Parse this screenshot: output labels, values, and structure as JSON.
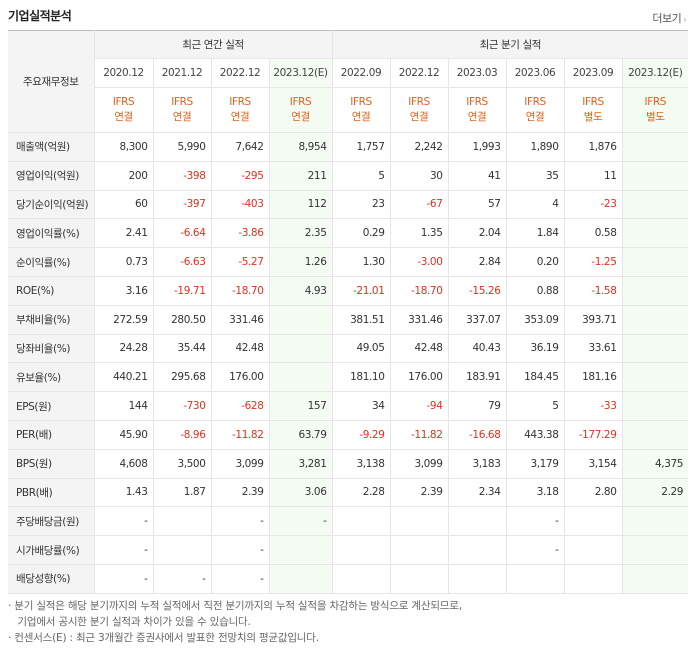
{
  "title": "기업실적분석",
  "more_label": "더보기",
  "more_arrow": "›",
  "corner_label": "주요재무정보",
  "group_annual": "최근 연간 실적",
  "group_quarter": "최근 분기 실적",
  "periods": [
    "2020.12",
    "2021.12",
    "2022.12",
    "2023.12(E)",
    "2022.09",
    "2022.12",
    "2023.03",
    "2023.06",
    "2023.09",
    "2023.12(E)"
  ],
  "standards": [
    [
      "IFRS",
      "연결"
    ],
    [
      "IFRS",
      "연결"
    ],
    [
      "IFRS",
      "연결"
    ],
    [
      "IFRS",
      "연결"
    ],
    [
      "IFRS",
      "연결"
    ],
    [
      "IFRS",
      "연결"
    ],
    [
      "IFRS",
      "연결"
    ],
    [
      "IFRS",
      "연결"
    ],
    [
      "IFRS",
      "별도"
    ],
    [
      "IFRS",
      "별도"
    ]
  ],
  "rows": [
    {
      "label": "매출액(억원)",
      "values": [
        "8,300",
        "5,990",
        "7,642",
        "8,954",
        "1,757",
        "2,242",
        "1,993",
        "1,890",
        "1,876",
        ""
      ]
    },
    {
      "label": "영업이익(억원)",
      "values": [
        "200",
        "-398",
        "-295",
        "211",
        "5",
        "30",
        "41",
        "35",
        "11",
        ""
      ]
    },
    {
      "label": "당기순이익(억원)",
      "values": [
        "60",
        "-397",
        "-403",
        "112",
        "23",
        "-67",
        "57",
        "4",
        "-23",
        ""
      ]
    },
    {
      "label": "영업이익률(%)",
      "values": [
        "2.41",
        "-6.64",
        "-3.86",
        "2.35",
        "0.29",
        "1.35",
        "2.04",
        "1.84",
        "0.58",
        ""
      ]
    },
    {
      "label": "순이익률(%)",
      "values": [
        "0.73",
        "-6.63",
        "-5.27",
        "1.26",
        "1.30",
        "-3.00",
        "2.84",
        "0.20",
        "-1.25",
        ""
      ]
    },
    {
      "label": "ROE(%)",
      "values": [
        "3.16",
        "-19.71",
        "-18.70",
        "4.93",
        "-21.01",
        "-18.70",
        "-15.26",
        "0.88",
        "-1.58",
        ""
      ]
    },
    {
      "label": "부채비율(%)",
      "values": [
        "272.59",
        "280.50",
        "331.46",
        "",
        "381.51",
        "331.46",
        "337.07",
        "353.09",
        "393.71",
        ""
      ]
    },
    {
      "label": "당좌비율(%)",
      "values": [
        "24.28",
        "35.44",
        "42.48",
        "",
        "49.05",
        "42.48",
        "40.43",
        "36.19",
        "33.61",
        ""
      ]
    },
    {
      "label": "유보율(%)",
      "values": [
        "440.21",
        "295.68",
        "176.00",
        "",
        "181.10",
        "176.00",
        "183.91",
        "184.45",
        "181.16",
        ""
      ]
    },
    {
      "label": "EPS(원)",
      "values": [
        "144",
        "-730",
        "-628",
        "157",
        "34",
        "-94",
        "79",
        "5",
        "-33",
        ""
      ]
    },
    {
      "label": "PER(배)",
      "values": [
        "45.90",
        "-8.96",
        "-11.82",
        "63.79",
        "-9.29",
        "-11.82",
        "-16.68",
        "443.38",
        "-177.29",
        ""
      ]
    },
    {
      "label": "BPS(원)",
      "values": [
        "4,608",
        "3,500",
        "3,099",
        "3,281",
        "3,138",
        "3,099",
        "3,183",
        "3,179",
        "3,154",
        "4,375"
      ]
    },
    {
      "label": "PBR(배)",
      "values": [
        "1.43",
        "1.87",
        "2.39",
        "3.06",
        "2.28",
        "2.39",
        "2.34",
        "3.18",
        "2.80",
        "2.29"
      ]
    },
    {
      "label": "주당배당금(원)",
      "values": [
        "-",
        "",
        "-",
        "-",
        "",
        "",
        "",
        "-",
        "",
        ""
      ]
    },
    {
      "label": "시가배당률(%)",
      "values": [
        "-",
        "",
        "-",
        "",
        "",
        "",
        "",
        "-",
        "",
        ""
      ]
    },
    {
      "label": "배당성향(%)",
      "values": [
        "-",
        "-",
        "-",
        "",
        "",
        "",
        "",
        "",
        "",
        ""
      ]
    }
  ],
  "notes": [
    "· 분기 실적은 해당 분기까지의 누적 실적에서 직전 분기까지의 누적 실적을 차감하는 방식으로 계산되므로,",
    "   기업에서 공시한 분기 실적과 차이가 있을 수 있습니다.",
    "· 컨센서스(E) : 최근 3개월간 증권사에서 발표한 전망치의 평균값입니다."
  ]
}
